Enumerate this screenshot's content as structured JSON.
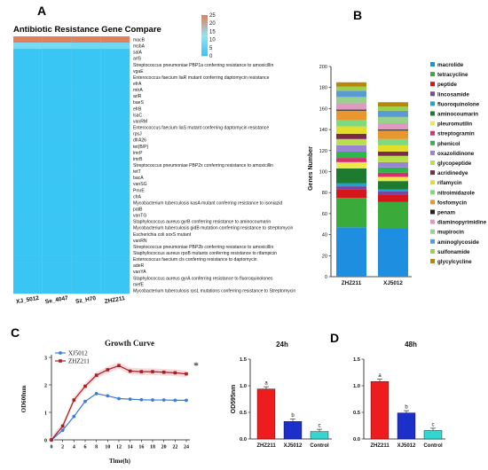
{
  "panels": {
    "a": {
      "letter": "A"
    },
    "b": {
      "letter": "B"
    },
    "c": {
      "letter": "C"
    },
    "d": {
      "letter": "D"
    }
  },
  "chart_data": [
    {
      "id": "heatmap",
      "type": "heatmap",
      "title": "Antibiotic Resistance Gene Compare",
      "columns": [
        "XJ_5012",
        "Se_4047",
        "Sz_H70",
        "ZHZ211"
      ],
      "colorbar": {
        "ticks": [
          0,
          5,
          10,
          15,
          20,
          25
        ],
        "range": [
          0,
          25
        ],
        "colors": {
          "low": "#33c3f5",
          "mid": "#8fe5f7",
          "high": "#e2805a"
        }
      },
      "rows": [
        "macB",
        "msbA",
        "salA",
        "arlS",
        "Streptococcus pneumoniae PBP1a conferring resistance to amoxicillin",
        "vgaE",
        "Enterococcus faecium liaR mutant conferring daptomycin resistance",
        "efrA",
        "mtrA",
        "arlR",
        "baeS",
        "efrB",
        "lsaC",
        "vanRM",
        "Enterococcus faecium liaS mutant conferring daptomycin resistance",
        "rpsJ",
        "dfrA26",
        "tet(B/P)",
        "lmrP",
        "lmrB",
        "Streptococcus pneumoniae PBP2x conferring resistance to amoxicillin",
        "tetT",
        "bacA",
        "vanSG",
        "PmrE",
        "cfrA",
        "Mycobacterium tuberculosis kasA mutant conferring resistance to isoniazid",
        "patB",
        "vanTG",
        "Staphylococcus aureus gyrB conferring resistance to aminocoumarin",
        "Mycobacterium tuberculosis gidB mutation conferring resistance to streptomycin",
        "Escherichia coli soxS mutant",
        "vanRN",
        "Streptococcus pneumoniae PBP2b conferring resistance to amoxicillin",
        "Staphylococcus aureus rpoB mutants conferring resistance to rifampicin",
        "Enterococcus faecium cls conferring resistance to daptomycin",
        "adeR",
        "vanYA",
        "Staphylococcus aureus gyrA conferring resistance to fluoroquinolones",
        "mefE",
        "Mycobacterium tuberculosis rpsL mutations conferring resistance to Streptomycin"
      ],
      "values": {
        "macB": [
          25,
          25,
          25,
          25
        ],
        "msbA": [
          9,
          9,
          8,
          8
        ]
      },
      "default_value": 1
    },
    {
      "id": "stacked",
      "type": "bar",
      "stacked": true,
      "ylabel": "Genes Number",
      "ylim": [
        0,
        200
      ],
      "yticks": [
        0,
        20,
        40,
        60,
        80,
        100,
        120,
        140,
        160,
        180,
        200
      ],
      "categories": [
        "ZHZ211",
        "XJ5012"
      ],
      "series": [
        {
          "name": "macrolide",
          "color": "#1e8fe0",
          "values": [
            47,
            46
          ]
        },
        {
          "name": "tetracycline",
          "color": "#3aaa3a",
          "values": [
            28,
            25
          ]
        },
        {
          "name": "peptide",
          "color": "#d4171b",
          "values": [
            8,
            7
          ]
        },
        {
          "name": "lincosamide",
          "color": "#7a43a6",
          "values": [
            3,
            3
          ]
        },
        {
          "name": "fluoroquinolone",
          "color": "#1ca6c9",
          "values": [
            3,
            2
          ]
        },
        {
          "name": "aminocoumarin",
          "color": "#1e7a2e",
          "values": [
            14,
            8
          ]
        },
        {
          "name": "pleuromutilin",
          "color": "#f0e84a",
          "values": [
            6,
            4
          ]
        },
        {
          "name": "streptogramin",
          "color": "#d6306f",
          "values": [
            4,
            4
          ]
        },
        {
          "name": "phenicol",
          "color": "#2ab84a",
          "values": [
            6,
            5
          ]
        },
        {
          "name": "oxazolidinone",
          "color": "#9b84d6",
          "values": [
            6,
            5
          ]
        },
        {
          "name": "glycopeptide",
          "color": "#b8e04a",
          "values": [
            6,
            6
          ]
        },
        {
          "name": "acridinedye",
          "color": "#7a2a4a",
          "values": [
            5,
            4
          ]
        },
        {
          "name": "rifamycin",
          "color": "#e4de2a",
          "values": [
            7,
            6
          ]
        },
        {
          "name": "nitroimidazole",
          "color": "#7fd97f",
          "values": [
            6,
            6
          ]
        },
        {
          "name": "fosfomycin",
          "color": "#e8962e",
          "values": [
            9,
            8
          ]
        },
        {
          "name": "penam",
          "color": "#222222",
          "values": [
            1,
            1
          ]
        },
        {
          "name": "diaminopyrimidine",
          "color": "#e09ac2",
          "values": [
            6,
            6
          ]
        },
        {
          "name": "mupirocin",
          "color": "#96d18e",
          "values": [
            6,
            6
          ]
        },
        {
          "name": "aminoglycoside",
          "color": "#5c9ad6",
          "values": [
            6,
            6
          ]
        },
        {
          "name": "sulfonamide",
          "color": "#9bd24a",
          "values": [
            4,
            4
          ]
        },
        {
          "name": "glycylcycline",
          "color": "#b8860b",
          "values": [
            4,
            4
          ]
        }
      ]
    },
    {
      "id": "growth",
      "type": "line",
      "title": "Growth Curve",
      "xlabel": "Time(h)",
      "ylabel": "OD600nm",
      "x": [
        0,
        2,
        4,
        6,
        8,
        10,
        12,
        14,
        16,
        18,
        20,
        22,
        24
      ],
      "xlim": [
        0,
        24
      ],
      "ylim": [
        0,
        3
      ],
      "yticks": [
        0,
        1,
        2,
        3
      ],
      "annotation": "*",
      "series": [
        {
          "name": "XJ5012",
          "color": "#3b7dd8",
          "values": [
            0,
            0.35,
            0.85,
            1.4,
            1.68,
            1.6,
            1.5,
            1.48,
            1.46,
            1.45,
            1.45,
            1.44,
            1.44
          ]
        },
        {
          "name": "ZHZ211",
          "color": "#a52020",
          "values": [
            0,
            0.5,
            1.45,
            1.95,
            2.35,
            2.55,
            2.7,
            2.5,
            2.48,
            2.48,
            2.46,
            2.44,
            2.4
          ]
        }
      ]
    },
    {
      "id": "od24",
      "type": "bar",
      "title": "24h",
      "ylabel": "OD595nm",
      "ylim": [
        0,
        1.5
      ],
      "yticks": [
        0.0,
        0.5,
        1.0,
        1.5
      ],
      "categories": [
        "ZHZ211",
        "XJ5012",
        "Control"
      ],
      "values": [
        0.94,
        0.33,
        0.14
      ],
      "labels": [
        "a",
        "b",
        "c"
      ],
      "colors": [
        "#ee1c1c",
        "#1c2fc8",
        "#35d6d0"
      ]
    },
    {
      "id": "od48",
      "type": "bar",
      "title": "48h",
      "ylim": [
        0,
        1.5
      ],
      "yticks": [
        0.0,
        0.5,
        1.0,
        1.5
      ],
      "categories": [
        "ZHZ211",
        "XJ5012",
        "Control"
      ],
      "values": [
        1.08,
        0.49,
        0.16
      ],
      "labels": [
        "a",
        "b",
        "c"
      ],
      "colors": [
        "#ee1c1c",
        "#1c2fc8",
        "#35d6d0"
      ]
    }
  ]
}
